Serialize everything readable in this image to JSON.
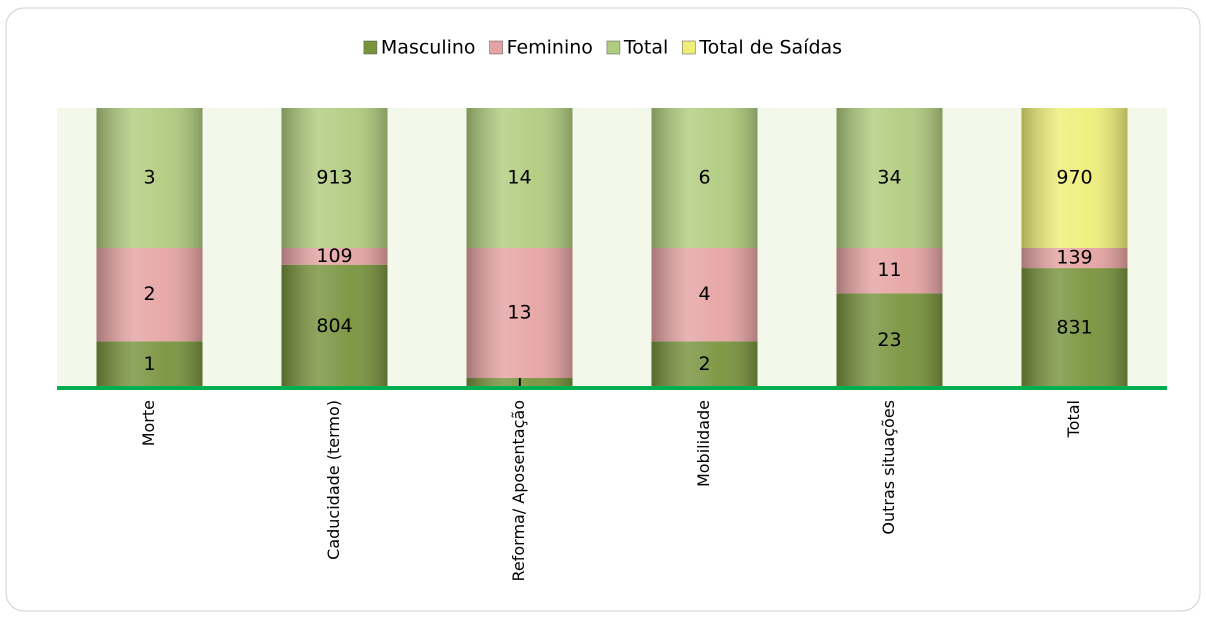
{
  "chart_data": {
    "type": "bar",
    "stacking": "percent",
    "categories": [
      "Morte",
      "Caducidade (termo)",
      "Reforma/ Aposentação",
      "Mobilidade",
      "Outras situações",
      "Total"
    ],
    "series": [
      {
        "name": "Masculino",
        "color": "#77933c",
        "values": [
          1,
          804,
          1,
          2,
          23,
          831
        ]
      },
      {
        "name": "Feminino",
        "color": "#e6a3a3",
        "values": [
          2,
          109,
          13,
          4,
          11,
          139
        ]
      },
      {
        "name": "Total",
        "color": "#b0cc7e",
        "values": [
          3,
          913,
          14,
          6,
          34,
          null
        ]
      },
      {
        "name": "Total de Saídas",
        "color": "#eeee78",
        "values": [
          null,
          null,
          null,
          null,
          null,
          970
        ]
      }
    ],
    "legend": "top"
  }
}
